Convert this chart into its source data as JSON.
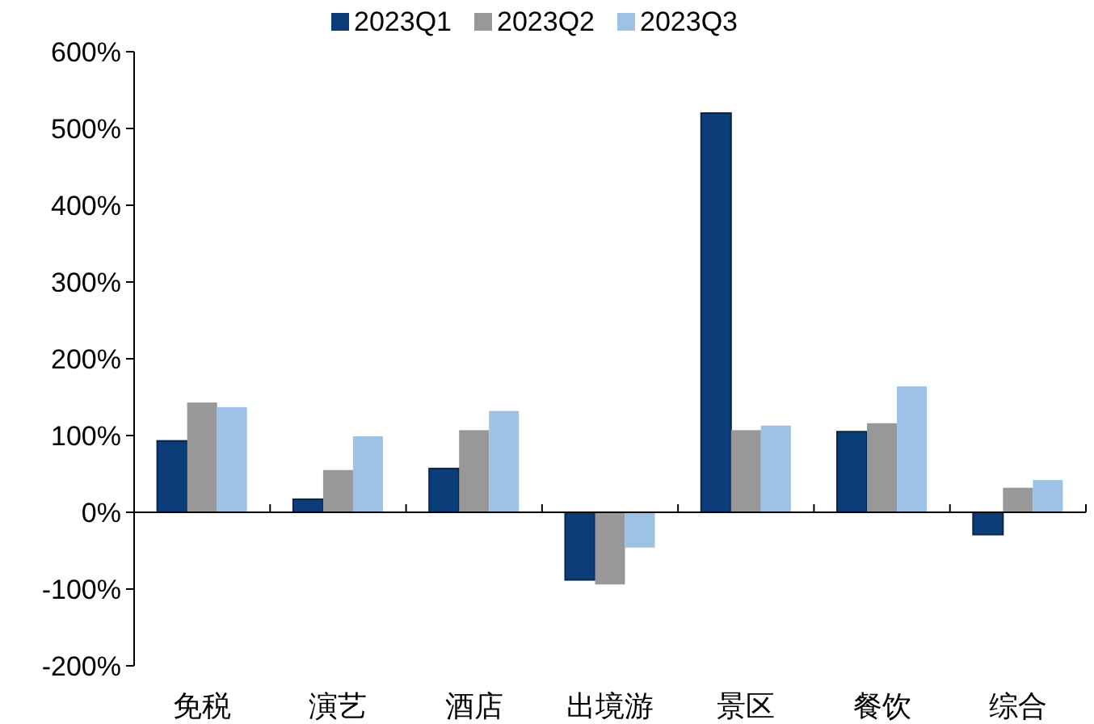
{
  "chart_data": {
    "type": "bar",
    "categories": [
      "免税",
      "演艺",
      "酒店",
      "出境游",
      "景区",
      "餐饮",
      "综合"
    ],
    "series": [
      {
        "name": "2023Q1",
        "color": "#0b3d78",
        "values": [
          93,
          17,
          57,
          -88,
          520,
          105,
          -29
        ]
      },
      {
        "name": "2023Q2",
        "color": "#989898",
        "values": [
          143,
          55,
          107,
          -94,
          107,
          116,
          32
        ]
      },
      {
        "name": "2023Q3",
        "color": "#9cc2e6",
        "values": [
          137,
          99,
          132,
          -46,
          113,
          164,
          42
        ]
      }
    ],
    "ylim": [
      -200,
      600
    ],
    "yticks": [
      {
        "value": 600,
        "label": "600%"
      },
      {
        "value": 500,
        "label": "500%"
      },
      {
        "value": 400,
        "label": "400%"
      },
      {
        "value": 300,
        "label": "300%"
      },
      {
        "value": 200,
        "label": "200%"
      },
      {
        "value": 100,
        "label": "100%"
      },
      {
        "value": 0,
        "label": "0%"
      },
      {
        "value": -100,
        "label": "-100%"
      },
      {
        "value": -200,
        "label": "-200%"
      }
    ],
    "legend": "top"
  }
}
